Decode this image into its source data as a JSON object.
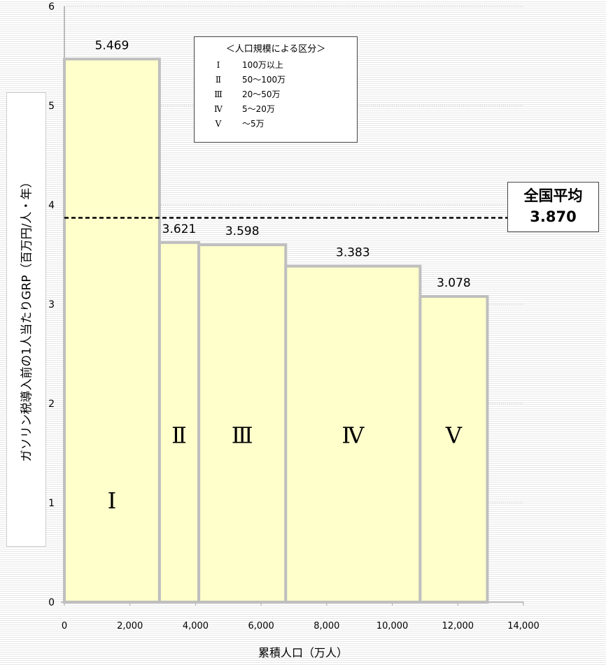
{
  "chart_data": {
    "type": "bar",
    "xlabel": "累積人口（万人）",
    "ylabel": "ガソリン税導入前の1人当たりGRP（百万円/人・年）",
    "xlim": [
      0,
      14000
    ],
    "ylim": [
      0,
      6
    ],
    "xticks": [
      "0",
      "2,000",
      "4,000",
      "6,000",
      "8,000",
      "10,000",
      "12,000",
      "14,000"
    ],
    "yticks": [
      "0",
      "1",
      "2",
      "3",
      "4",
      "5",
      "6"
    ],
    "grid": "horizontal",
    "bars": [
      {
        "category": "Ⅰ",
        "x_start": 0,
        "x_end": 2900,
        "value": 5.469,
        "label": "5.469"
      },
      {
        "category": "Ⅱ",
        "x_start": 2900,
        "x_end": 4100,
        "value": 3.621,
        "label": "3.621"
      },
      {
        "category": "Ⅲ",
        "x_start": 4100,
        "x_end": 6750,
        "value": 3.598,
        "label": "3.598"
      },
      {
        "category": "Ⅳ",
        "x_start": 6750,
        "x_end": 10850,
        "value": 3.383,
        "label": "3.383"
      },
      {
        "category": "Ⅴ",
        "x_start": 10850,
        "x_end": 12900,
        "value": 3.078,
        "label": "3.078"
      }
    ],
    "reference_line": {
      "value": 3.87,
      "title": "全国平均",
      "label": "3.870"
    },
    "legend": {
      "title": "＜人口規模による区分＞",
      "items": [
        {
          "num": "Ⅰ",
          "range": "100万以上"
        },
        {
          "num": "Ⅱ",
          "range": "50～100万"
        },
        {
          "num": "Ⅲ",
          "range": "20～50万"
        },
        {
          "num": "Ⅳ",
          "range": "5～20万"
        },
        {
          "num": "Ⅴ",
          "range": "～5万"
        }
      ]
    },
    "colors": {
      "bar_fill": "#ffffcc",
      "bar_border": "#bfbfbf",
      "axis": "#a6a6a6",
      "grid": "#bfbfbf"
    }
  }
}
